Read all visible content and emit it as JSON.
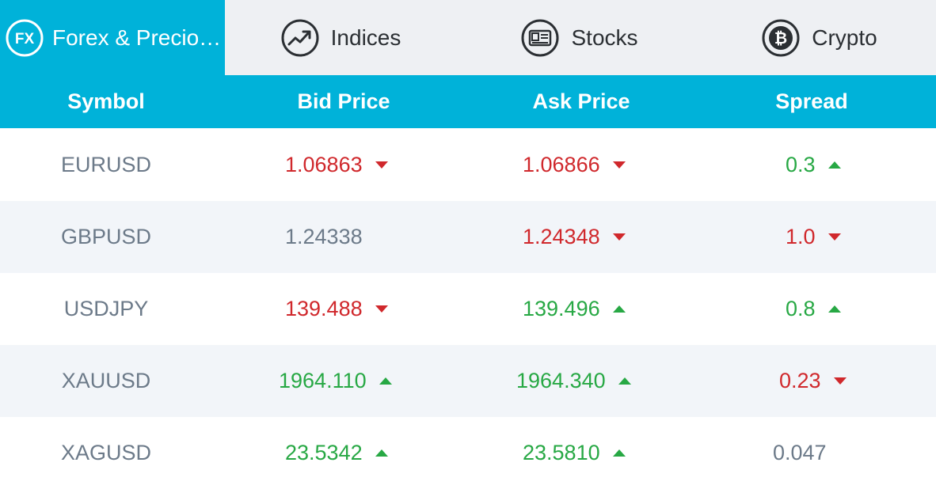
{
  "tabs": [
    {
      "label": "Forex & Precio…",
      "icon": "fx-icon",
      "active": true
    },
    {
      "label": "Indices",
      "icon": "trend-chart-icon",
      "active": false
    },
    {
      "label": "Stocks",
      "icon": "stock-certificate-icon",
      "active": false
    },
    {
      "label": "Crypto",
      "icon": "bitcoin-icon",
      "active": false
    }
  ],
  "fx_icon_text": "FX",
  "columns": {
    "symbol": "Symbol",
    "bid": "Bid Price",
    "ask": "Ask Price",
    "spread": "Spread"
  },
  "rows": [
    {
      "symbol": "EURUSD",
      "bid": "1.06863",
      "bid_dir": "down",
      "ask": "1.06866",
      "ask_dir": "down",
      "spread": "0.3",
      "spread_dir": "up"
    },
    {
      "symbol": "GBPUSD",
      "bid": "1.24338",
      "bid_dir": "flat",
      "ask": "1.24348",
      "ask_dir": "down",
      "spread": "1.0",
      "spread_dir": "down"
    },
    {
      "symbol": "USDJPY",
      "bid": "139.488",
      "bid_dir": "down",
      "ask": "139.496",
      "ask_dir": "up",
      "spread": "0.8",
      "spread_dir": "up"
    },
    {
      "symbol": "XAUUSD",
      "bid": "1964.110",
      "bid_dir": "up",
      "ask": "1964.340",
      "ask_dir": "up",
      "spread": "0.23",
      "spread_dir": "down"
    },
    {
      "symbol": "XAGUSD",
      "bid": "23.5342",
      "bid_dir": "up",
      "ask": "23.5810",
      "ask_dir": "up",
      "spread": "0.047",
      "spread_dir": "flat"
    }
  ],
  "colors": {
    "accent": "#00b2d9",
    "up": "#27a844",
    "down": "#d0282c",
    "neutral": "#6c7a89"
  }
}
